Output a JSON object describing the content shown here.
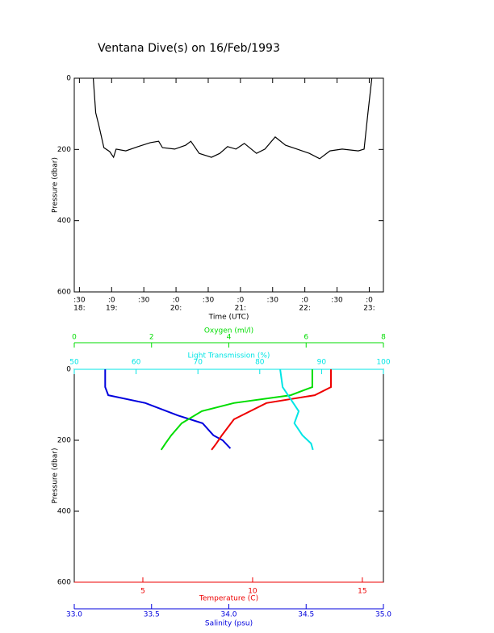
{
  "chart_data": [
    {
      "type": "line",
      "title": "Ventana Dive(s) on 16/Feb/1993",
      "ylabel": "Pressure (dbar)",
      "xlabel": "Time (UTC)",
      "ylim": [
        0,
        600
      ],
      "yticks": [
        0,
        200,
        400,
        600
      ],
      "y_inverted": true,
      "xlim": [
        18.42,
        23.22
      ],
      "xticks": [
        {
          "value": 18.5,
          "label": ":30"
        },
        {
          "value": 19,
          "label": ":0"
        },
        {
          "value": 19.5,
          "label": ":30"
        },
        {
          "value": 20,
          "label": ":0"
        },
        {
          "value": 20.5,
          "label": ":30"
        },
        {
          "value": 21,
          "label": ":0"
        },
        {
          "value": 21.5,
          "label": ":30"
        },
        {
          "value": 22,
          "label": ":0"
        },
        {
          "value": 22.5,
          "label": ":30"
        },
        {
          "value": 23,
          "label": ":0"
        }
      ],
      "xtick_hours": [
        {
          "value": 18.5,
          "label": "18:"
        },
        {
          "value": 19,
          "label": "19:"
        },
        {
          "value": 20,
          "label": "20:"
        },
        {
          "value": 21,
          "label": "21:"
        },
        {
          "value": 22,
          "label": "22:"
        },
        {
          "value": 23,
          "label": "23:"
        }
      ],
      "color": "#000000",
      "x": [
        18.715,
        18.753,
        18.8,
        18.88,
        18.97,
        19.03,
        19.07,
        19.22,
        19.41,
        19.6,
        19.73,
        19.79,
        19.98,
        20.15,
        20.23,
        20.36,
        20.55,
        20.68,
        20.8,
        20.93,
        21.06,
        21.25,
        21.38,
        21.54,
        21.7,
        21.88,
        22.07,
        22.23,
        22.39,
        22.58,
        22.83,
        22.92,
        22.98,
        23.04
      ],
      "values": [
        0,
        97,
        131,
        195,
        206,
        222,
        199,
        204,
        192,
        181,
        177,
        195,
        199,
        188,
        177,
        211,
        222,
        211,
        192,
        199,
        183,
        211,
        199,
        165,
        188,
        199,
        211,
        226,
        204,
        199,
        204,
        199,
        97,
        0
      ]
    },
    {
      "type": "profile",
      "ylabel": "Pressure (dbar)",
      "ylim": [
        0,
        600
      ],
      "yticks": [
        0,
        200,
        400,
        600
      ],
      "y_inverted": true,
      "axes": [
        {
          "label": "Oxygen (ml/l)",
          "color": "#00dd00",
          "side": "top",
          "xlim": [
            0,
            8
          ],
          "xticks": [
            0,
            2,
            4,
            6,
            8
          ]
        },
        {
          "label": "Light Transmission (%)",
          "color": "#00e5e5",
          "side": "top",
          "xlim": [
            50,
            100
          ],
          "xticks": [
            50,
            60,
            70,
            80,
            90,
            100
          ]
        },
        {
          "label": "Temperature (C)",
          "color": "#ee0000",
          "side": "bottom",
          "xlim": [
            1.875,
            15.96
          ],
          "xticks": [
            5,
            10,
            15
          ]
        },
        {
          "label": "Salinity (psu)",
          "color": "#0000dd",
          "side": "bottom",
          "xlim": [
            33,
            35
          ],
          "xticks": [
            {
              "value": 33,
              "label": "33.0"
            },
            {
              "value": 33.5,
              "label": "33.5"
            },
            {
              "value": 34,
              "label": "34.0"
            },
            {
              "value": 34.5,
              "label": "34.5"
            },
            {
              "value": 35,
              "label": "35.0"
            }
          ]
        }
      ],
      "series": [
        {
          "axis": 3,
          "color": "#0000dd",
          "x": [
            33.2,
            33.2,
            33.22,
            33.46,
            33.67,
            33.83,
            33.9,
            33.96,
            34.01
          ],
          "values": [
            0,
            50,
            73,
            95,
            130,
            152,
            186,
            200,
            223
          ]
        },
        {
          "axis": 0,
          "color": "#00dd00",
          "x": [
            6.16,
            6.16,
            5.6,
            4.13,
            3.3,
            2.78,
            2.51,
            2.36,
            2.25
          ],
          "values": [
            0,
            50,
            73,
            95,
            118,
            152,
            186,
            209,
            227
          ]
        },
        {
          "axis": 2,
          "color": "#ee0000",
          "x": [
            13.57,
            13.57,
            12.83,
            10.63,
            9.15,
            8.6,
            8.35,
            8.13
          ],
          "values": [
            0,
            50,
            73,
            95,
            141,
            186,
            209,
            227
          ]
        },
        {
          "axis": 1,
          "color": "#00e5e5",
          "x": [
            83.3,
            83.7,
            85.0,
            86.3,
            85.6,
            86.9,
            88.3,
            88.6
          ],
          "values": [
            0,
            50,
            84,
            118,
            152,
            186,
            209,
            227
          ]
        }
      ]
    }
  ]
}
